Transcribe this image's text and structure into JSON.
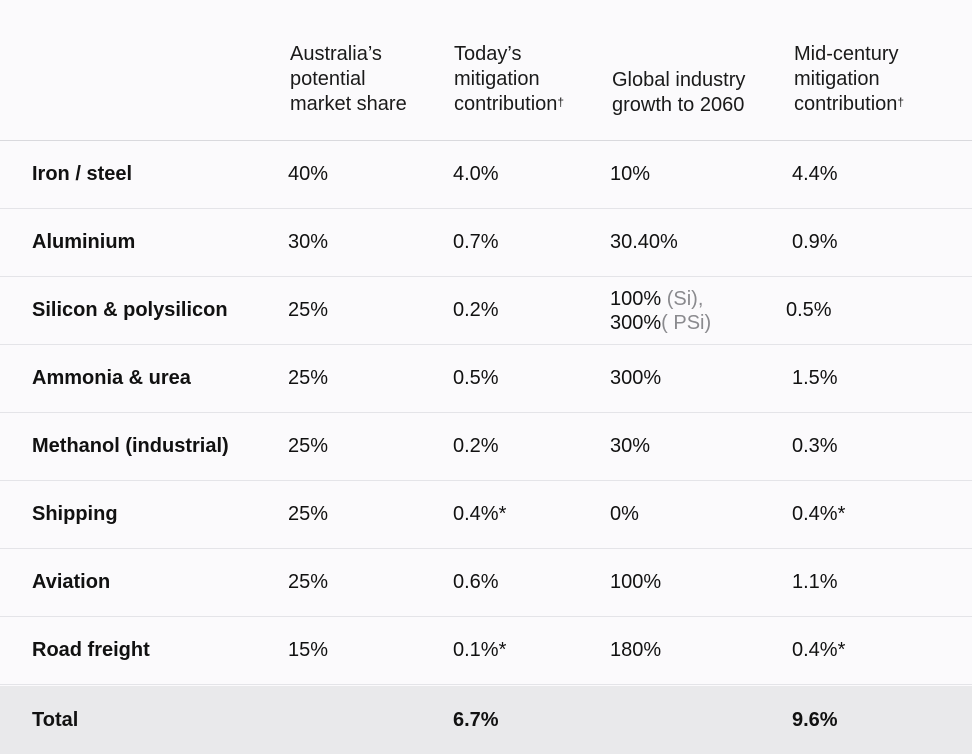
{
  "chart_data": {
    "type": "table",
    "columns": [
      "",
      "Australia’s potential market share",
      "Today’s mitigation contribution†",
      "Global industry growth to 2060",
      "Mid-century mitigation contribution†"
    ],
    "header": {
      "col1": "Australia’s\npotential\nmarket share",
      "col2": "Today’s\nmitigation\ncontribution",
      "col2_mark": "†",
      "col3": "Global industry\ngrowth to 2060",
      "col4": "Mid-century\nmitigation\ncontribution",
      "col4_mark": "†"
    },
    "rows": [
      {
        "label": "Iron / steel",
        "share": "40%",
        "today": "4.0%",
        "growth": "10%",
        "midcentury": "4.4%"
      },
      {
        "label": "Aluminium",
        "share": "30%",
        "today": "0.7%",
        "growth": "30.40%",
        "midcentury": "0.9%"
      },
      {
        "label": "Silicon & polysilicon",
        "share": "25%",
        "today": "0.2%",
        "growth": "100%",
        "growth_note": " (Si),",
        "growth_line2": "300%",
        "growth_note2": "( PSi)",
        "midcentury": "0.5%"
      },
      {
        "label": "Ammonia & urea",
        "share": "25%",
        "today": "0.5%",
        "growth": "300%",
        "midcentury": "1.5%"
      },
      {
        "label": "Methanol (industrial)",
        "share": "25%",
        "today": "0.2%",
        "growth": "30%",
        "midcentury": "0.3%"
      },
      {
        "label": "Shipping",
        "share": "25%",
        "today": "0.4%*",
        "growth": "0%",
        "midcentury": "0.4%*"
      },
      {
        "label": "Aviation",
        "share": "25%",
        "today": "0.6%",
        "growth": "100%",
        "midcentury": "1.1%"
      },
      {
        "label": "Road freight",
        "share": "15%",
        "today": "0.1%*",
        "growth": "180%",
        "midcentury": "0.4%*"
      }
    ],
    "total": {
      "label": "Total",
      "share": "",
      "today": "6.7%",
      "growth": "",
      "midcentury": "9.6%"
    }
  }
}
